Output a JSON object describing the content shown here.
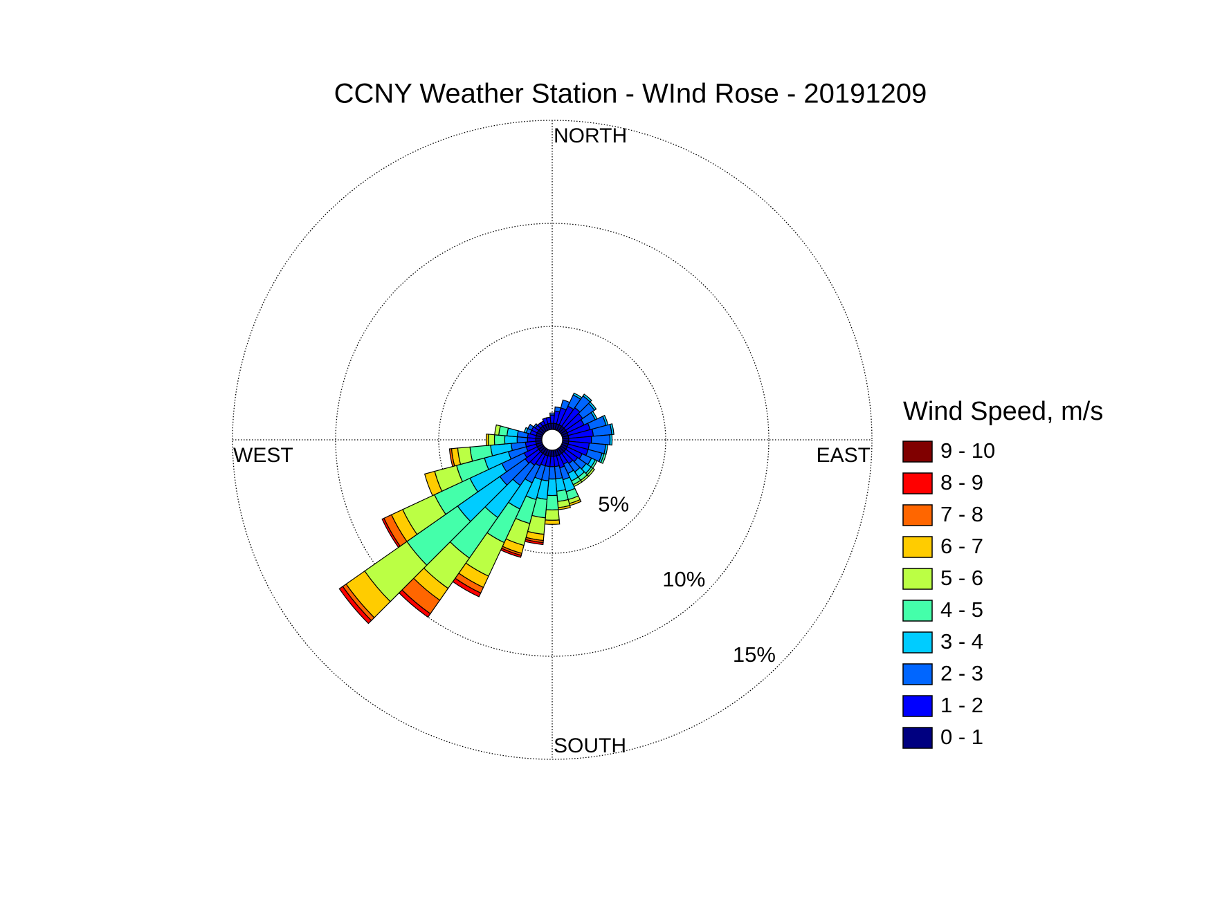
{
  "chart_data": {
    "type": "windrose",
    "title": "CCNY Weather Station - WInd Rose - 20191209",
    "legend_title": "Wind Speed, m/s",
    "direction_labels": {
      "north": "NORTH",
      "east": "EAST",
      "south": "SOUTH",
      "west": "WEST"
    },
    "directions": [
      0,
      10,
      20,
      30,
      40,
      50,
      60,
      70,
      80,
      90,
      100,
      110,
      120,
      130,
      140,
      150,
      160,
      170,
      180,
      190,
      200,
      210,
      220,
      230,
      240,
      250,
      260,
      270,
      280,
      290,
      300,
      310,
      320,
      330,
      340,
      350
    ],
    "sector_width": 10,
    "rlim": [
      0,
      15
    ],
    "rticks": [
      {
        "value": 5,
        "label": "5%"
      },
      {
        "value": 10,
        "label": "10%"
      },
      {
        "value": 15,
        "label": "15%"
      }
    ],
    "grid": true,
    "legend_position": "right",
    "series": [
      {
        "name": "0 - 1",
        "color": "#000080",
        "values": [
          0.3,
          0.3,
          0.3,
          0.3,
          0.3,
          0.3,
          0.3,
          0.3,
          0.3,
          0.3,
          0.3,
          0.3,
          0.3,
          0.3,
          0.3,
          0.3,
          0.3,
          0.3,
          0.3,
          0.3,
          0.3,
          0.3,
          0.3,
          0.3,
          0.3,
          0.3,
          0.3,
          0.3,
          0.3,
          0.3,
          0.3,
          0.3,
          0.3,
          0.3,
          0.3,
          0.3
        ]
      },
      {
        "name": "1 - 2",
        "color": "#0000ff",
        "values": [
          0.4,
          0.6,
          0.8,
          1.0,
          1.1,
          1.0,
          0.9,
          1.1,
          1.2,
          1.1,
          1.0,
          1.0,
          0.8,
          0.7,
          0.6,
          0.5,
          0.6,
          0.5,
          0.5,
          0.5,
          0.5,
          0.6,
          0.7,
          0.8,
          0.7,
          0.5,
          0.5,
          0.4,
          0.4,
          0.3,
          0.3,
          0.2,
          0.2,
          0.2,
          0.3,
          0.3
        ]
      },
      {
        "name": "2 - 3",
        "color": "#0066ff",
        "values": [
          0.1,
          0.2,
          0.4,
          0.6,
          0.7,
          0.7,
          0.6,
          0.8,
          0.9,
          0.9,
          0.8,
          0.7,
          0.5,
          0.5,
          0.5,
          0.5,
          0.6,
          0.6,
          0.6,
          0.7,
          0.7,
          0.9,
          1.2,
          1.5,
          1.2,
          0.9,
          0.7,
          0.5,
          0.5,
          0.2,
          0.2,
          0.1,
          0,
          0,
          0,
          0
        ]
      },
      {
        "name": "3 - 4",
        "color": "#00ccff",
        "values": [
          0,
          0,
          0,
          0.1,
          0.1,
          0.1,
          0.1,
          0.1,
          0.1,
          0.1,
          0.1,
          0.1,
          0.2,
          0.3,
          0.3,
          0.4,
          0.6,
          0.6,
          0.8,
          0.9,
          1.0,
          1.4,
          1.9,
          2.5,
          1.7,
          1.2,
          1.0,
          0.6,
          0.5,
          0.1,
          0,
          0,
          0,
          0,
          0,
          0
        ]
      },
      {
        "name": "4 - 5",
        "color": "#44ffaa",
        "values": [
          0,
          0,
          0,
          0,
          0,
          0,
          0,
          0,
          0,
          0,
          0,
          0.1,
          0.1,
          0.1,
          0.2,
          0.2,
          0.4,
          0.5,
          0.7,
          0.9,
          1.2,
          1.8,
          2.4,
          3.0,
          1.9,
          1.4,
          1.0,
          0.5,
          0.4,
          0,
          0,
          0,
          0,
          0,
          0,
          0
        ]
      },
      {
        "name": "5 - 6",
        "color": "#bbff44",
        "values": [
          0,
          0,
          0,
          0,
          0,
          0,
          0,
          0,
          0,
          0,
          0,
          0,
          0,
          0.1,
          0.1,
          0.1,
          0.2,
          0.3,
          0.5,
          0.8,
          1.1,
          1.8,
          1.8,
          2.5,
          1.7,
          1.1,
          0.6,
          0.3,
          0.2,
          0,
          0,
          0,
          0,
          0,
          0,
          0
        ]
      },
      {
        "name": "6 - 7",
        "color": "#ffcc00",
        "values": [
          0,
          0,
          0,
          0,
          0,
          0,
          0,
          0,
          0,
          0,
          0,
          0,
          0,
          0,
          0,
          0,
          0.1,
          0.1,
          0.2,
          0.3,
          0.4,
          0.6,
          0.7,
          1.1,
          0.6,
          0.5,
          0.3,
          0.1,
          0,
          0,
          0,
          0,
          0,
          0,
          0,
          0
        ]
      },
      {
        "name": "7 - 8",
        "color": "#ff6600",
        "values": [
          0,
          0,
          0,
          0,
          0,
          0,
          0,
          0,
          0,
          0,
          0,
          0,
          0,
          0,
          0,
          0,
          0,
          0,
          0,
          0.1,
          0.1,
          0.3,
          0.8,
          0.2,
          0.4,
          0,
          0.1,
          0,
          0,
          0,
          0,
          0,
          0,
          0,
          0,
          0
        ]
      },
      {
        "name": "8 - 9",
        "color": "#ff0000",
        "values": [
          0,
          0,
          0,
          0,
          0,
          0,
          0,
          0,
          0,
          0,
          0,
          0,
          0,
          0,
          0,
          0,
          0,
          0,
          0,
          0.1,
          0.1,
          0.2,
          0.2,
          0.2,
          0.1,
          0,
          0,
          0,
          0,
          0,
          0,
          0,
          0,
          0,
          0,
          0
        ]
      },
      {
        "name": "9 - 10",
        "color": "#800000",
        "values": [
          0,
          0,
          0,
          0,
          0,
          0,
          0,
          0,
          0,
          0,
          0,
          0,
          0,
          0,
          0,
          0,
          0,
          0,
          0,
          0,
          0,
          0,
          0,
          0,
          0,
          0,
          0,
          0,
          0,
          0,
          0,
          0,
          0,
          0,
          0,
          0
        ]
      }
    ]
  }
}
